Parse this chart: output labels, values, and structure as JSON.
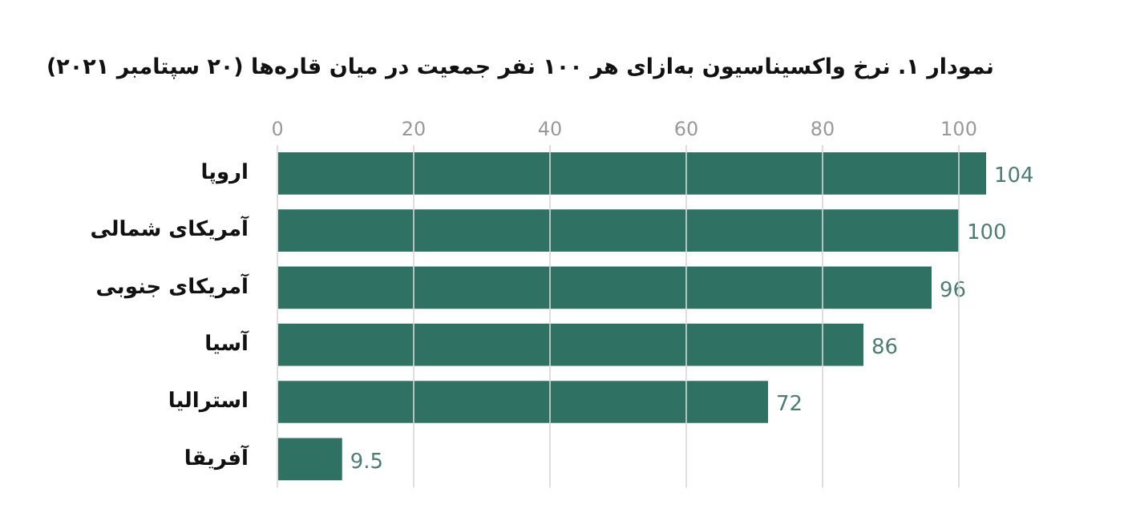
{
  "chart_data": {
    "type": "bar",
    "orientation": "horizontal",
    "title": "نمودار ۱. نرخ واکسیناسیون به‌ازای هر ۱۰۰ نفر جمعیت در میان قاره‌ها (۲۰ سپتامبر ۲۰۲۱)",
    "categories": [
      "اروپا",
      "آمریکای شمالی",
      "آمریکای جنوبی",
      "آسیا",
      "استرالیا",
      "آفریقا"
    ],
    "values": [
      104,
      100,
      96,
      86,
      72,
      9.5
    ],
    "color": "#2f7263",
    "xlim": [
      0,
      104
    ],
    "xticks": [
      0,
      20,
      40,
      60,
      80,
      100
    ],
    "grid": "x",
    "data_labels": true,
    "legend": false
  }
}
